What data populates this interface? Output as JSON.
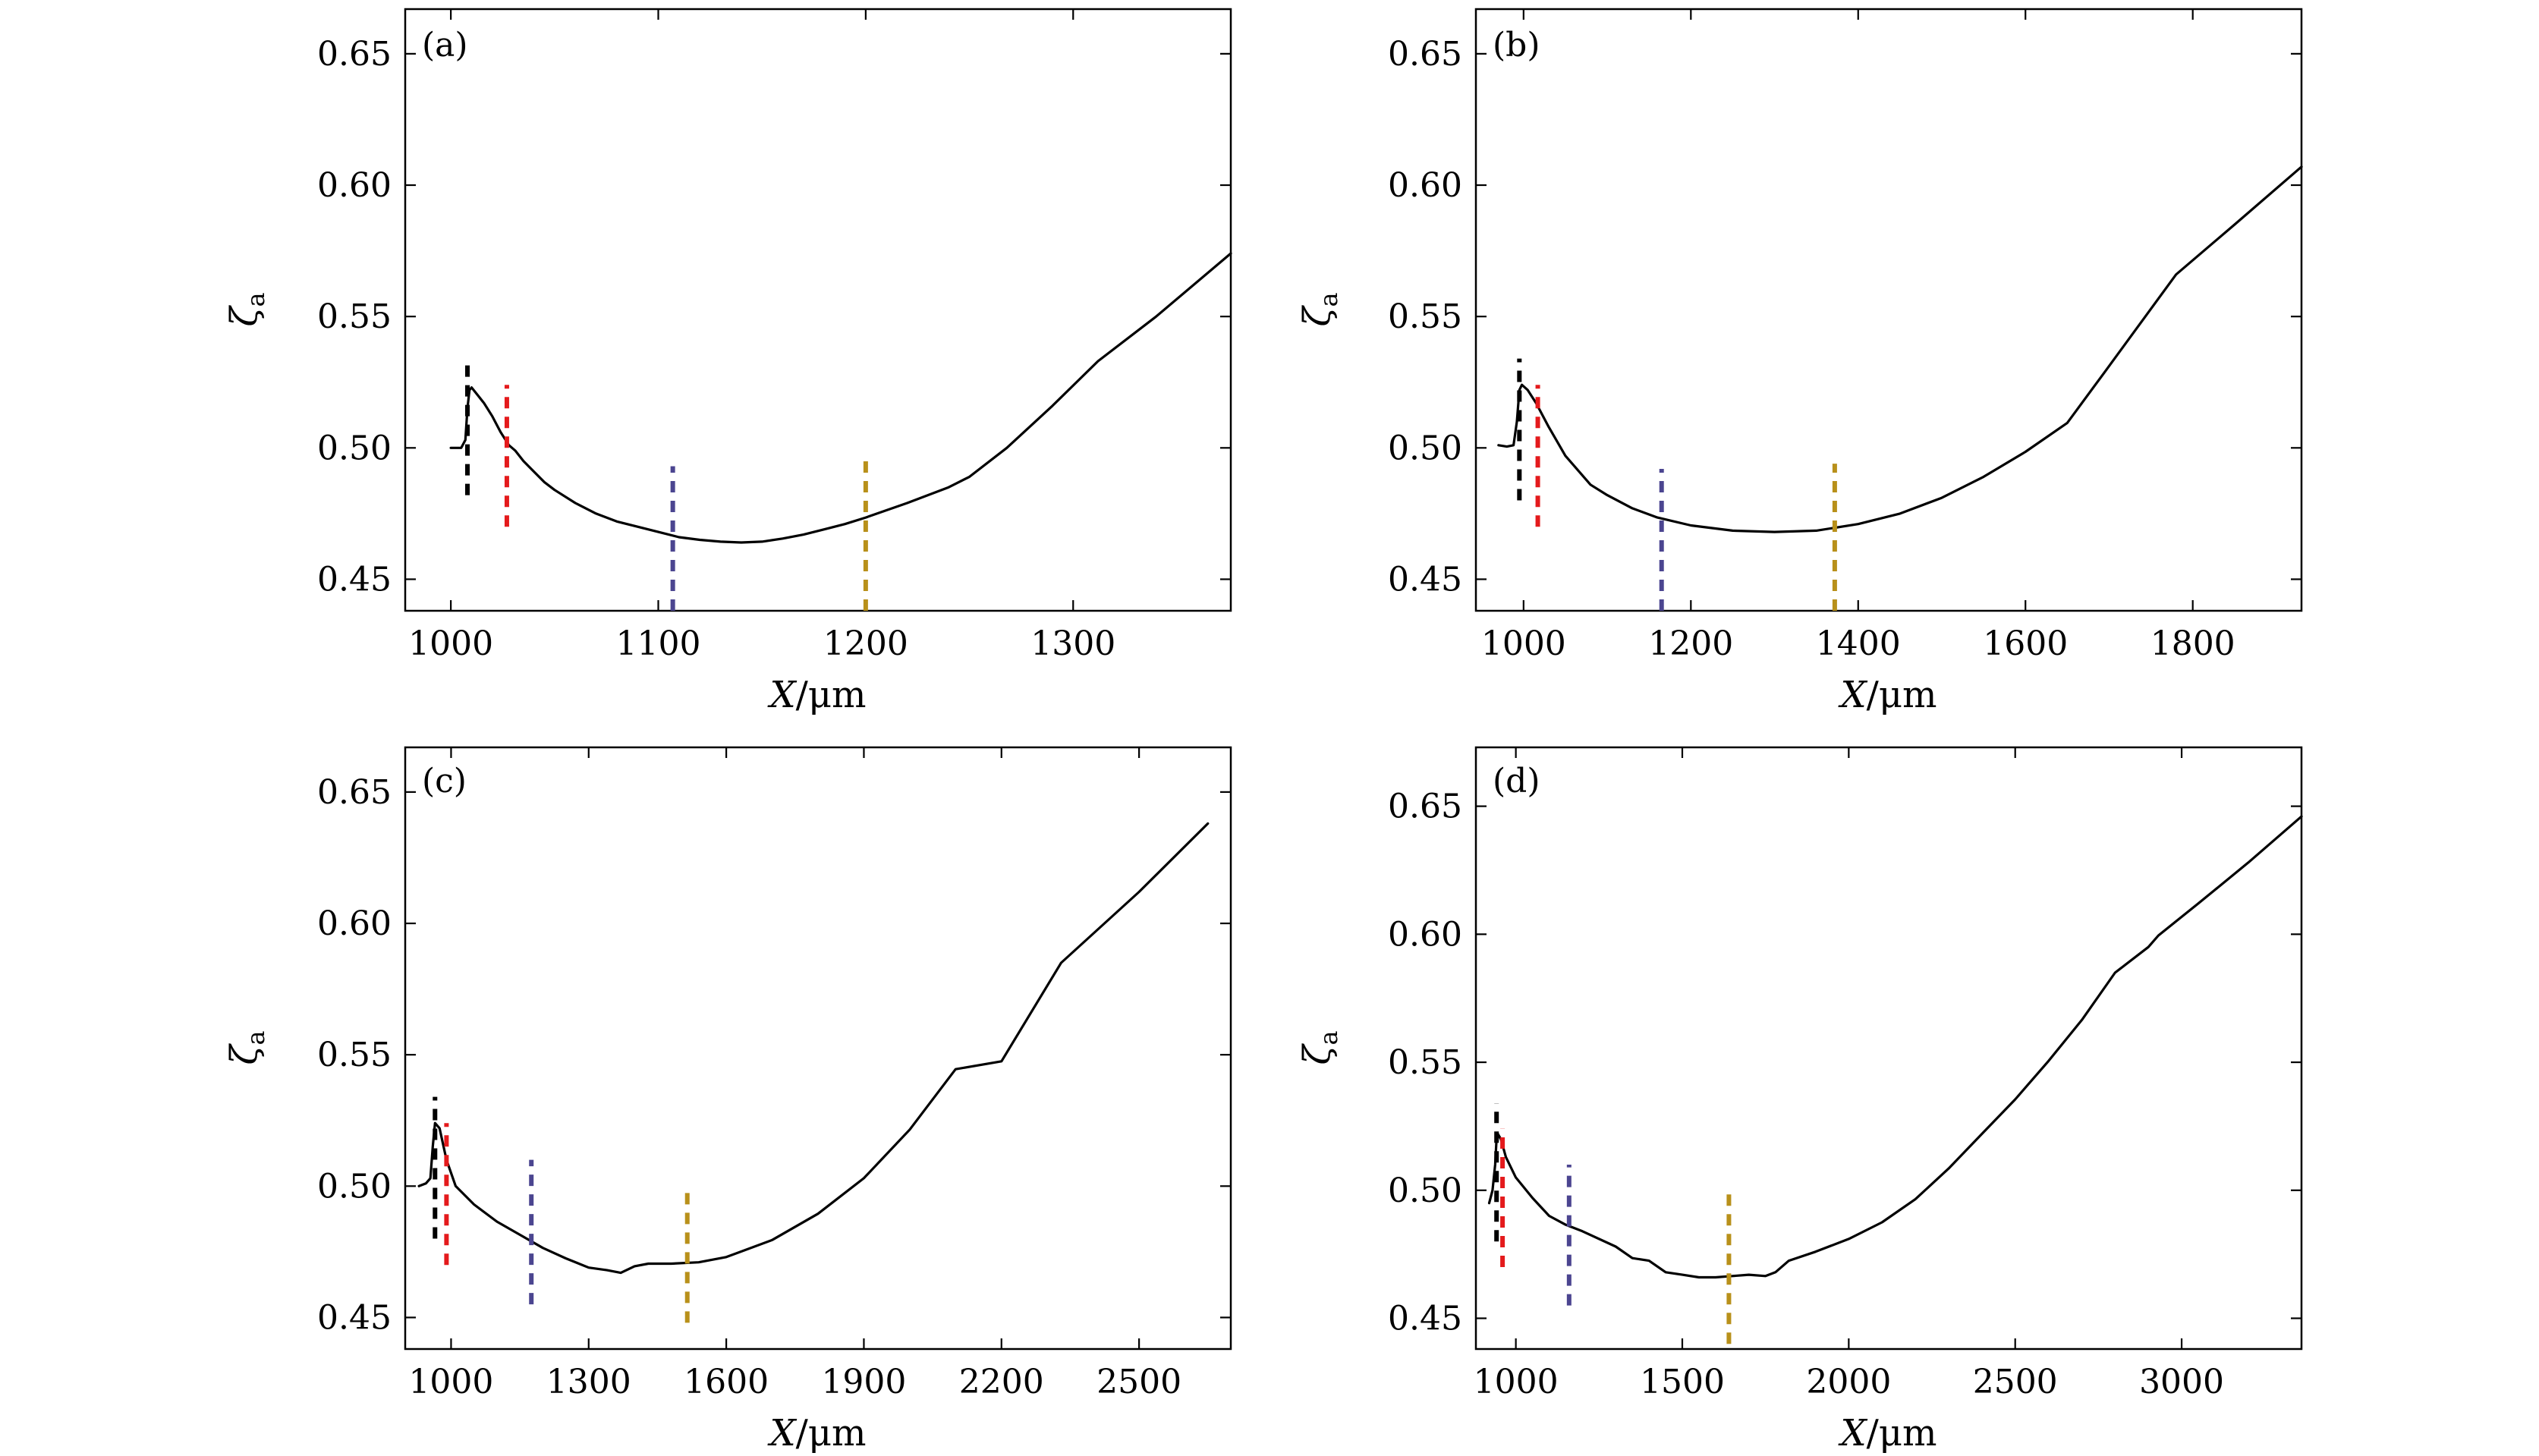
{
  "chart_data": [
    {
      "type": "line",
      "panel_label": "(a)",
      "xlabel_var": "X",
      "xlabel_unit": "/μm",
      "ylabel_var": "ζ",
      "ylabel_sub": "a",
      "xlim": [
        978,
        1376
      ],
      "ylim": [
        0.438,
        0.667
      ],
      "xticks": [
        1000,
        1100,
        1200,
        1300
      ],
      "xtick_labels": [
        "1000",
        "1100",
        "1200",
        "1300"
      ],
      "yticks": [
        0.45,
        0.5,
        0.55,
        0.6,
        0.65
      ],
      "ytick_labels": [
        "0.45",
        "0.50",
        "0.55",
        "0.60",
        "0.65"
      ],
      "grid": false,
      "series": [
        {
          "x": [
            1000,
            1005,
            1007,
            1008,
            1009,
            1010,
            1013,
            1016,
            1020,
            1024,
            1028,
            1031,
            1035,
            1040,
            1045,
            1050,
            1060,
            1070,
            1080,
            1090,
            1100,
            1110,
            1120,
            1130,
            1140,
            1150,
            1160,
            1170,
            1180,
            1190,
            1200,
            1220,
            1240,
            1250,
            1268,
            1290,
            1312,
            1340,
            1376
          ],
          "y": [
            0.5,
            0.5,
            0.503,
            0.515,
            0.522,
            0.523,
            0.52,
            0.517,
            0.512,
            0.506,
            0.501,
            0.499,
            0.495,
            0.491,
            0.487,
            0.484,
            0.479,
            0.475,
            0.472,
            0.47,
            0.468,
            0.466,
            0.465,
            0.4643,
            0.464,
            0.4643,
            0.4655,
            0.467,
            0.469,
            0.471,
            0.4735,
            0.479,
            0.485,
            0.489,
            0.5,
            0.516,
            0.533,
            0.55,
            0.574
          ]
        }
      ],
      "markers": [
        {
          "x": 1008,
          "y": [
            0.482,
            0.534
          ],
          "color": "#000000"
        },
        {
          "x": 1027,
          "y": [
            0.47,
            0.524
          ],
          "color": "#e41a1c"
        },
        {
          "x": 1107,
          "y": [
            0.438,
            0.493
          ],
          "color": "#4b4590"
        },
        {
          "x": 1200,
          "y": [
            0.438,
            0.495
          ],
          "color": "#b8901a"
        }
      ]
    },
    {
      "type": "line",
      "panel_label": "(b)",
      "xlabel_var": "X",
      "xlabel_unit": "/μm",
      "ylabel_var": "ζ",
      "ylabel_sub": "a",
      "xlim": [
        943,
        1930
      ],
      "ylim": [
        0.438,
        0.667
      ],
      "xticks": [
        1000,
        1200,
        1400,
        1600,
        1800
      ],
      "xtick_labels": [
        "1000",
        "1200",
        "1400",
        "1600",
        "1800"
      ],
      "yticks": [
        0.45,
        0.5,
        0.55,
        0.6,
        0.65
      ],
      "ytick_labels": [
        "0.45",
        "0.50",
        "0.55",
        "0.60",
        "0.65"
      ],
      "grid": false,
      "series": [
        {
          "x": [
            970,
            980,
            988,
            992,
            995,
            998,
            1005,
            1015,
            1030,
            1050,
            1080,
            1100,
            1130,
            1160,
            1200,
            1250,
            1300,
            1350,
            1400,
            1450,
            1500,
            1550,
            1600,
            1650,
            1695,
            1780,
            1850,
            1930
          ],
          "y": [
            0.501,
            0.5005,
            0.501,
            0.51,
            0.522,
            0.524,
            0.522,
            0.517,
            0.508,
            0.497,
            0.486,
            0.482,
            0.477,
            0.4735,
            0.4705,
            0.4685,
            0.468,
            0.4685,
            0.471,
            0.475,
            0.481,
            0.489,
            0.4985,
            0.5095,
            0.529,
            0.566,
            0.585,
            0.607
          ]
        }
      ],
      "markers": [
        {
          "x": 995,
          "y": [
            0.48,
            0.534
          ],
          "color": "#000000"
        },
        {
          "x": 1017,
          "y": [
            0.47,
            0.524
          ],
          "color": "#e41a1c"
        },
        {
          "x": 1165,
          "y": [
            0.438,
            0.492
          ],
          "color": "#4b4590"
        },
        {
          "x": 1372,
          "y": [
            0.438,
            0.494
          ],
          "color": "#b8901a"
        }
      ]
    },
    {
      "type": "line",
      "panel_label": "(c)",
      "xlabel_var": "X",
      "xlabel_unit": "/μm",
      "ylabel_var": "ζ",
      "ylabel_sub": "a",
      "xlim": [
        900,
        2700
      ],
      "ylim": [
        0.438,
        0.667
      ],
      "xticks": [
        1000,
        1300,
        1600,
        1900,
        2200,
        2500
      ],
      "xtick_labels": [
        "1000",
        "1300",
        "1600",
        "1900",
        "2200",
        "2500"
      ],
      "yticks": [
        0.45,
        0.5,
        0.55,
        0.6,
        0.65
      ],
      "ytick_labels": [
        "0.45",
        "0.50",
        "0.55",
        "0.60",
        "0.65"
      ],
      "grid": false,
      "series": [
        {
          "x": [
            930,
            945,
            955,
            960,
            965,
            975,
            990,
            1010,
            1050,
            1100,
            1150,
            1200,
            1250,
            1300,
            1340,
            1370,
            1400,
            1430,
            1480,
            1540,
            1600,
            1700,
            1800,
            1900,
            2000,
            2100,
            2200,
            2330,
            2500,
            2650
          ],
          "y": [
            0.5,
            0.501,
            0.503,
            0.515,
            0.524,
            0.522,
            0.51,
            0.5,
            0.493,
            0.4865,
            0.4815,
            0.4765,
            0.4725,
            0.469,
            0.468,
            0.467,
            0.4695,
            0.4705,
            0.4705,
            0.471,
            0.473,
            0.4795,
            0.4895,
            0.503,
            0.5215,
            0.5445,
            0.5475,
            0.585,
            0.612,
            0.638
          ]
        }
      ],
      "markers": [
        {
          "x": 965,
          "y": [
            0.48,
            0.534
          ],
          "color": "#000000"
        },
        {
          "x": 990,
          "y": [
            0.47,
            0.524
          ],
          "color": "#e41a1c"
        },
        {
          "x": 1175,
          "y": [
            0.455,
            0.51
          ],
          "color": "#4b4590"
        },
        {
          "x": 1515,
          "y": [
            0.448,
            0.5
          ],
          "color": "#b8901a"
        }
      ]
    },
    {
      "type": "line",
      "panel_label": "(d)",
      "xlabel_var": "X",
      "xlabel_unit": "/μm",
      "ylabel_var": "ζ",
      "ylabel_sub": "a",
      "xlim": [
        880,
        3360
      ],
      "ylim": [
        0.438,
        0.673
      ],
      "xticks": [
        1000,
        1500,
        2000,
        2500,
        3000
      ],
      "xtick_labels": [
        "1000",
        "1500",
        "2000",
        "2500",
        "3000"
      ],
      "yticks": [
        0.45,
        0.5,
        0.55,
        0.6,
        0.65
      ],
      "ytick_labels": [
        "0.45",
        "0.50",
        "0.55",
        "0.60",
        "0.65"
      ],
      "grid": false,
      "series": [
        {
          "x": [
            920,
            930,
            938,
            942,
            946,
            955,
            970,
            1000,
            1050,
            1100,
            1150,
            1200,
            1300,
            1350,
            1400,
            1450,
            1500,
            1550,
            1600,
            1650,
            1700,
            1750,
            1780,
            1820,
            1900,
            2000,
            2100,
            2200,
            2300,
            2400,
            2500,
            2600,
            2700,
            2800,
            2900,
            2930,
            3050,
            3200,
            3360
          ],
          "y": [
            0.495,
            0.5,
            0.51,
            0.52,
            0.522,
            0.52,
            0.513,
            0.505,
            0.497,
            0.49,
            0.4865,
            0.484,
            0.478,
            0.4735,
            0.4725,
            0.468,
            0.467,
            0.466,
            0.466,
            0.4665,
            0.467,
            0.4665,
            0.468,
            0.4725,
            0.476,
            0.481,
            0.4875,
            0.4965,
            0.5085,
            0.522,
            0.5355,
            0.5505,
            0.5665,
            0.585,
            0.595,
            0.5995,
            0.612,
            0.628,
            0.646
          ]
        }
      ],
      "markers": [
        {
          "x": 942,
          "y": [
            0.48,
            0.534
          ],
          "color": "#000000"
        },
        {
          "x": 960,
          "y": [
            0.47,
            0.524
          ],
          "color": "#e41a1c"
        },
        {
          "x": 1160,
          "y": [
            0.455,
            0.51
          ],
          "color": "#4b4590"
        },
        {
          "x": 1640,
          "y": [
            0.44,
            0.5
          ],
          "color": "#b8901a"
        }
      ]
    }
  ]
}
